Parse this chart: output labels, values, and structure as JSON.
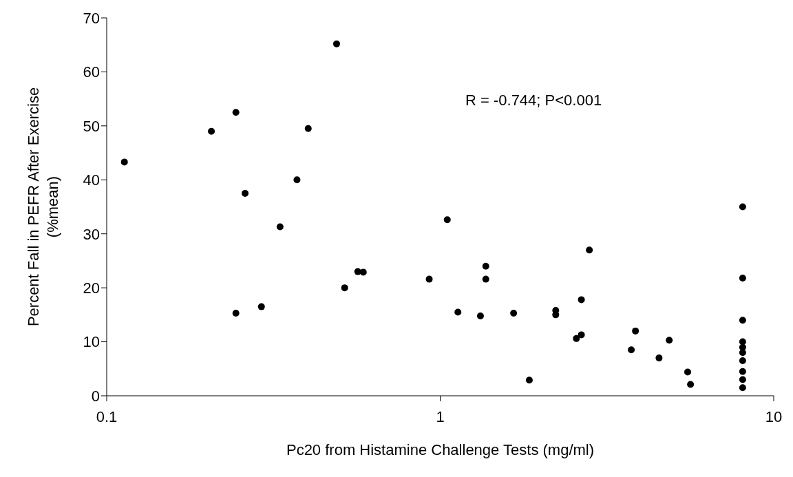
{
  "chart_data": {
    "type": "scatter",
    "xlabel": "Pc20 from Histamine Challenge Tests (mg/ml)",
    "ylabel": "Percent Fall in PEFR After Exercise\n(%mean)",
    "annotations": [
      "R = -0.744; P<0.001"
    ],
    "log": "x",
    "xlim": [
      0.1,
      10
    ],
    "xticks": [
      0.1,
      1,
      10
    ],
    "ylim": [
      0,
      70
    ],
    "yticks": [
      0,
      10,
      20,
      30,
      40,
      50,
      60,
      70
    ],
    "grid": false,
    "legend": false,
    "marker": "circle",
    "x": [
      0.113,
      0.206,
      0.244,
      0.244,
      0.26,
      0.291,
      0.331,
      0.372,
      0.402,
      0.489,
      0.517,
      0.566,
      0.588,
      0.927,
      1.05,
      1.13,
      1.32,
      1.37,
      1.37,
      1.66,
      1.85,
      2.22,
      2.22,
      2.56,
      2.65,
      2.65,
      2.8,
      3.74,
      3.85,
      4.53,
      4.86,
      5.52,
      5.63,
      8.07,
      8.07,
      8.07,
      8.07,
      8.07,
      8.07,
      8.07,
      8.07,
      8.07,
      8.07
    ],
    "series": [
      {
        "color": "#000000",
        "values": [
          43.3,
          49,
          52.5,
          15.3,
          37.5,
          16.5,
          31.3,
          40,
          49.5,
          65.2,
          20,
          23,
          22.9,
          21.6,
          32.6,
          15.5,
          14.8,
          24,
          21.6,
          15.3,
          2.9,
          15.8,
          15,
          10.6,
          17.8,
          11.3,
          27,
          8.5,
          12,
          7,
          10.3,
          4.4,
          2.1,
          35,
          21.8,
          14,
          10,
          9,
          8,
          6.5,
          4.5,
          3,
          1.5
        ]
      }
    ]
  }
}
